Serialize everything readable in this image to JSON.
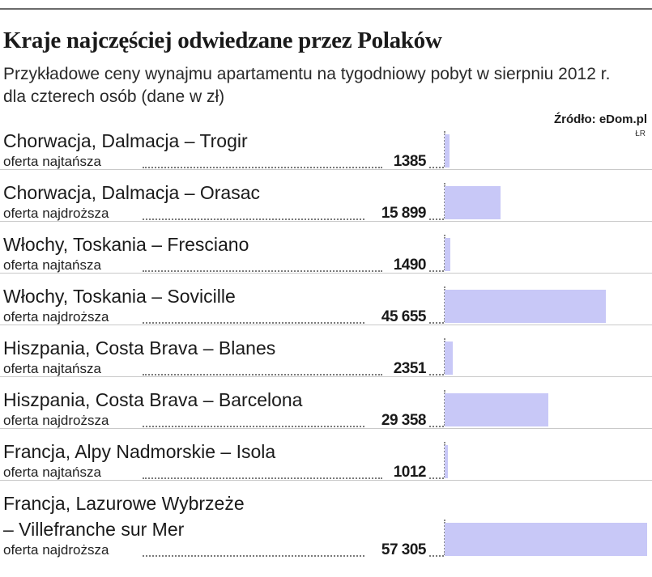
{
  "header": {
    "title": "Kraje najczęściej odwiedzane przez Polaków",
    "subtitle": "Przykładowe ceny wynajmu apartamentu na tygodniowy pobyt w sierpniu 2012 r. dla czterech osób (dane w zł)",
    "source": "Źródło: eDom.pl",
    "initials": "ŁR"
  },
  "colors": {
    "bar": "#c8c8f7",
    "text": "#1a1a1a",
    "rule": "#6b6b6b"
  },
  "chart_data": {
    "type": "bar",
    "orientation": "horizontal",
    "title": "Kraje najczęściej odwiedzane przez Polaków",
    "subtitle": "Przykładowe ceny wynajmu apartamentu na tygodniowy pobyt w sierpniu 2012 r. dla czterech osób (dane w zł)",
    "unit": "zł",
    "xlim": [
      0,
      57305
    ],
    "categories": [
      "Chorwacja, Dalmacja – Trogir",
      "Chorwacja, Dalmacja – Orasac",
      "Włochy, Toskania – Fresciano",
      "Włochy, Toskania – Sovicille",
      "Hiszpania, Costa Brava – Blanes",
      "Hiszpania, Costa Brava – Barcelona",
      "Francja, Alpy Nadmorskie – Isola",
      "Francja, Lazurowe Wybrzeże – Villefranche sur Mer"
    ],
    "rows": [
      {
        "label": "Chorwacja, Dalmacja – Trogir",
        "label_line2": "",
        "sublabel": "oferta najtańsza",
        "value": 1385,
        "value_text": "1385"
      },
      {
        "label": "Chorwacja, Dalmacja – Orasac",
        "label_line2": "",
        "sublabel": "oferta najdroższa",
        "value": 15899,
        "value_text": "15 899"
      },
      {
        "label": "Włochy, Toskania – Fresciano",
        "label_line2": "",
        "sublabel": "oferta najtańsza",
        "value": 1490,
        "value_text": "1490"
      },
      {
        "label": "Włochy, Toskania – Sovicille",
        "label_line2": "",
        "sublabel": "oferta najdroższa",
        "value": 45655,
        "value_text": "45 655"
      },
      {
        "label": "Hiszpania, Costa Brava – Blanes",
        "label_line2": "",
        "sublabel": "oferta najtańsza",
        "value": 2351,
        "value_text": "2351"
      },
      {
        "label": "Hiszpania, Costa Brava – Barcelona",
        "label_line2": "",
        "sublabel": "oferta najdroższa",
        "value": 29358,
        "value_text": "29 358"
      },
      {
        "label": "Francja, Alpy Nadmorskie – Isola",
        "label_line2": "",
        "sublabel": "oferta najtańsza",
        "value": 1012,
        "value_text": "1012"
      },
      {
        "label": "Francja, Lazurowe Wybrzeże",
        "label_line2": "– Villefranche sur Mer",
        "sublabel": "oferta najdroższa",
        "value": 57305,
        "value_text": "57 305"
      }
    ]
  }
}
